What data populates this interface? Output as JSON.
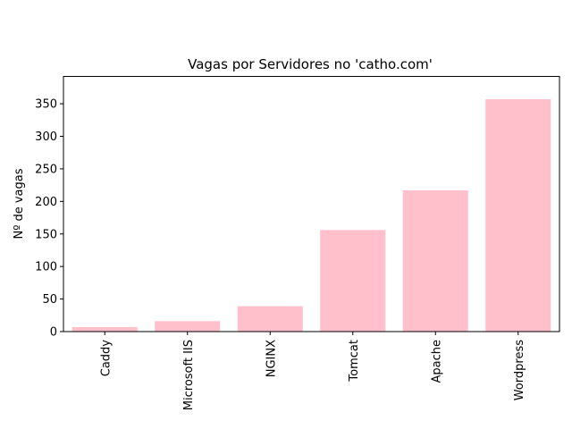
{
  "chart_data": {
    "type": "bar",
    "title": "Vagas por Servidores no 'catho.com'",
    "xlabel": "",
    "ylabel": "Nº de vagas",
    "categories": [
      "Caddy",
      "Microsoft IIS",
      "NGINX",
      "Tomcat",
      "Apache",
      "Wordpress"
    ],
    "values": [
      7,
      16,
      39,
      156,
      217,
      357
    ],
    "ylim": [
      0,
      392
    ],
    "yticks": [
      0,
      50,
      100,
      150,
      200,
      250,
      300,
      350
    ],
    "bar_color": "#ffc0cb",
    "grid": false,
    "legend": "none"
  }
}
